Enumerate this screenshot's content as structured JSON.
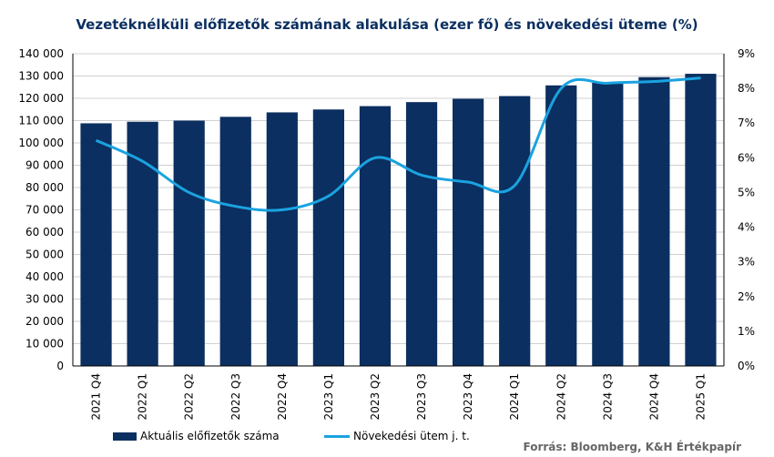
{
  "title": "Vezetéknélküli előfizetők számának alakulása (ezer fő) és növekedési üteme (%)",
  "source": "Forrás: Bloomberg, K&H Értékpapír",
  "colors": {
    "bars": "#0b2f60",
    "line": "#1aa3e0",
    "grid": "#d0d0d0"
  },
  "chart_data": {
    "type": "bar+line",
    "categories": [
      "2021 Q4",
      "2022 Q1",
      "2022 Q2",
      "2022 Q3",
      "2022 Q4",
      "2023 Q1",
      "2023 Q2",
      "2023 Q3",
      "2023 Q4",
      "2024 Q1",
      "2024 Q2",
      "2024 Q3",
      "2024 Q4",
      "2025 Q1"
    ],
    "series": [
      {
        "name": "Aktuális előfizetők száma",
        "type": "bar",
        "axis": "left",
        "values": [
          108800,
          109500,
          110000,
          111700,
          113700,
          115000,
          116500,
          118300,
          119800,
          121000,
          125800,
          127000,
          129500,
          131000
        ]
      },
      {
        "name": "Növekedési ütem j. t.",
        "type": "line",
        "axis": "right",
        "values": [
          6.5,
          5.9,
          5.0,
          4.6,
          4.5,
          4.9,
          6.0,
          5.5,
          5.3,
          5.2,
          8.0,
          8.15,
          8.2,
          8.3
        ]
      }
    ],
    "left_axis": {
      "ylim": [
        0,
        140000
      ],
      "ticks": [
        "0",
        "10 000",
        "20 000",
        "30 000",
        "40 000",
        "50 000",
        "60 000",
        "70 000",
        "80 000",
        "90 000",
        "100 000",
        "110 000",
        "120 000",
        "130 000",
        "140 000"
      ]
    },
    "right_axis": {
      "ylim": [
        0,
        9
      ],
      "ticks": [
        "0%",
        "1%",
        "2%",
        "3%",
        "4%",
        "5%",
        "6%",
        "7%",
        "8%",
        "9%"
      ]
    },
    "grid": true,
    "legend_position": "bottom-left"
  }
}
